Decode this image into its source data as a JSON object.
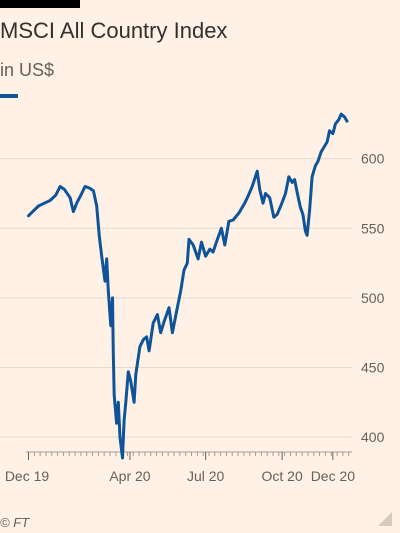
{
  "colors": {
    "background": "#fff1e5",
    "line": "#0f5499",
    "grid": "#e6d9ce",
    "text": "#33302e",
    "muted": "#66605c"
  },
  "chart_data": {
    "type": "line",
    "title": "MSCI All Country Index",
    "subtitle": "in US$",
    "xlabel": "",
    "ylabel": "",
    "ylim": [
      380,
      640
    ],
    "yticks": [
      400,
      450,
      500,
      550,
      600
    ],
    "grid": true,
    "y_axis_side": "right",
    "xticks": [
      {
        "label": "Dec 19",
        "x": "2019-12-01"
      },
      {
        "label": "Apr 20",
        "x": "2020-04-01"
      },
      {
        "label": "Jul 20",
        "x": "2020-07-01"
      },
      {
        "label": "Oct 20",
        "x": "2020-10-01"
      },
      {
        "label": "Dec 20",
        "x": "2020-12-01"
      }
    ],
    "series": [
      {
        "points": [
          [
            "2019-12-01",
            559
          ],
          [
            "2019-12-06",
            562
          ],
          [
            "2019-12-13",
            566
          ],
          [
            "2019-12-20",
            568
          ],
          [
            "2019-12-27",
            570
          ],
          [
            "2020-01-03",
            574
          ],
          [
            "2020-01-08",
            580
          ],
          [
            "2020-01-13",
            578
          ],
          [
            "2020-01-20",
            572
          ],
          [
            "2020-01-24",
            562
          ],
          [
            "2020-01-28",
            568
          ],
          [
            "2020-02-03",
            575
          ],
          [
            "2020-02-07",
            580
          ],
          [
            "2020-02-12",
            579
          ],
          [
            "2020-02-17",
            577
          ],
          [
            "2020-02-21",
            566
          ],
          [
            "2020-02-24",
            545
          ],
          [
            "2020-02-27",
            530
          ],
          [
            "2020-03-02",
            512
          ],
          [
            "2020-03-04",
            528
          ],
          [
            "2020-03-06",
            505
          ],
          [
            "2020-03-09",
            480
          ],
          [
            "2020-03-11",
            500
          ],
          [
            "2020-03-12",
            460
          ],
          [
            "2020-03-13",
            430
          ],
          [
            "2020-03-16",
            410
          ],
          [
            "2020-03-18",
            425
          ],
          [
            "2020-03-20",
            400
          ],
          [
            "2020-03-23",
            385
          ],
          [
            "2020-03-25",
            412
          ],
          [
            "2020-03-27",
            425
          ],
          [
            "2020-03-30",
            447
          ],
          [
            "2020-04-02",
            440
          ],
          [
            "2020-04-06",
            425
          ],
          [
            "2020-04-08",
            445
          ],
          [
            "2020-04-13",
            465
          ],
          [
            "2020-04-17",
            470
          ],
          [
            "2020-04-21",
            472
          ],
          [
            "2020-04-24",
            462
          ],
          [
            "2020-04-29",
            482
          ],
          [
            "2020-05-04",
            488
          ],
          [
            "2020-05-08",
            475
          ],
          [
            "2020-05-12",
            483
          ],
          [
            "2020-05-18",
            493
          ],
          [
            "2020-05-22",
            475
          ],
          [
            "2020-05-27",
            490
          ],
          [
            "2020-06-01",
            505
          ],
          [
            "2020-06-05",
            520
          ],
          [
            "2020-06-09",
            525
          ],
          [
            "2020-06-11",
            542
          ],
          [
            "2020-06-16",
            538
          ],
          [
            "2020-06-22",
            528
          ],
          [
            "2020-06-26",
            540
          ],
          [
            "2020-07-01",
            530
          ],
          [
            "2020-07-06",
            535
          ],
          [
            "2020-07-10",
            533
          ],
          [
            "2020-07-14",
            540
          ],
          [
            "2020-07-20",
            550
          ],
          [
            "2020-07-24",
            538
          ],
          [
            "2020-07-29",
            555
          ],
          [
            "2020-08-03",
            556
          ],
          [
            "2020-08-10",
            561
          ],
          [
            "2020-08-17",
            568
          ],
          [
            "2020-08-21",
            573
          ],
          [
            "2020-08-26",
            580
          ],
          [
            "2020-09-01",
            591
          ],
          [
            "2020-09-04",
            578
          ],
          [
            "2020-09-08",
            568
          ],
          [
            "2020-09-11",
            575
          ],
          [
            "2020-09-16",
            572
          ],
          [
            "2020-09-21",
            558
          ],
          [
            "2020-09-25",
            560
          ],
          [
            "2020-09-30",
            567
          ],
          [
            "2020-10-05",
            575
          ],
          [
            "2020-10-09",
            587
          ],
          [
            "2020-10-13",
            583
          ],
          [
            "2020-10-16",
            585
          ],
          [
            "2020-10-19",
            576
          ],
          [
            "2020-10-23",
            565
          ],
          [
            "2020-10-26",
            560
          ],
          [
            "2020-10-29",
            548
          ],
          [
            "2020-10-31",
            545
          ],
          [
            "2020-11-03",
            563
          ],
          [
            "2020-11-06",
            587
          ],
          [
            "2020-11-10",
            595
          ],
          [
            "2020-11-13",
            598
          ],
          [
            "2020-11-17",
            605
          ],
          [
            "2020-11-20",
            608
          ],
          [
            "2020-11-24",
            612
          ],
          [
            "2020-11-27",
            620
          ],
          [
            "2020-12-01",
            618
          ],
          [
            "2020-12-04",
            625
          ],
          [
            "2020-12-08",
            628
          ],
          [
            "2020-12-11",
            632
          ],
          [
            "2020-12-15",
            630
          ],
          [
            "2020-12-18",
            627
          ]
        ]
      }
    ]
  },
  "footer": {
    "credit": "© FT"
  }
}
